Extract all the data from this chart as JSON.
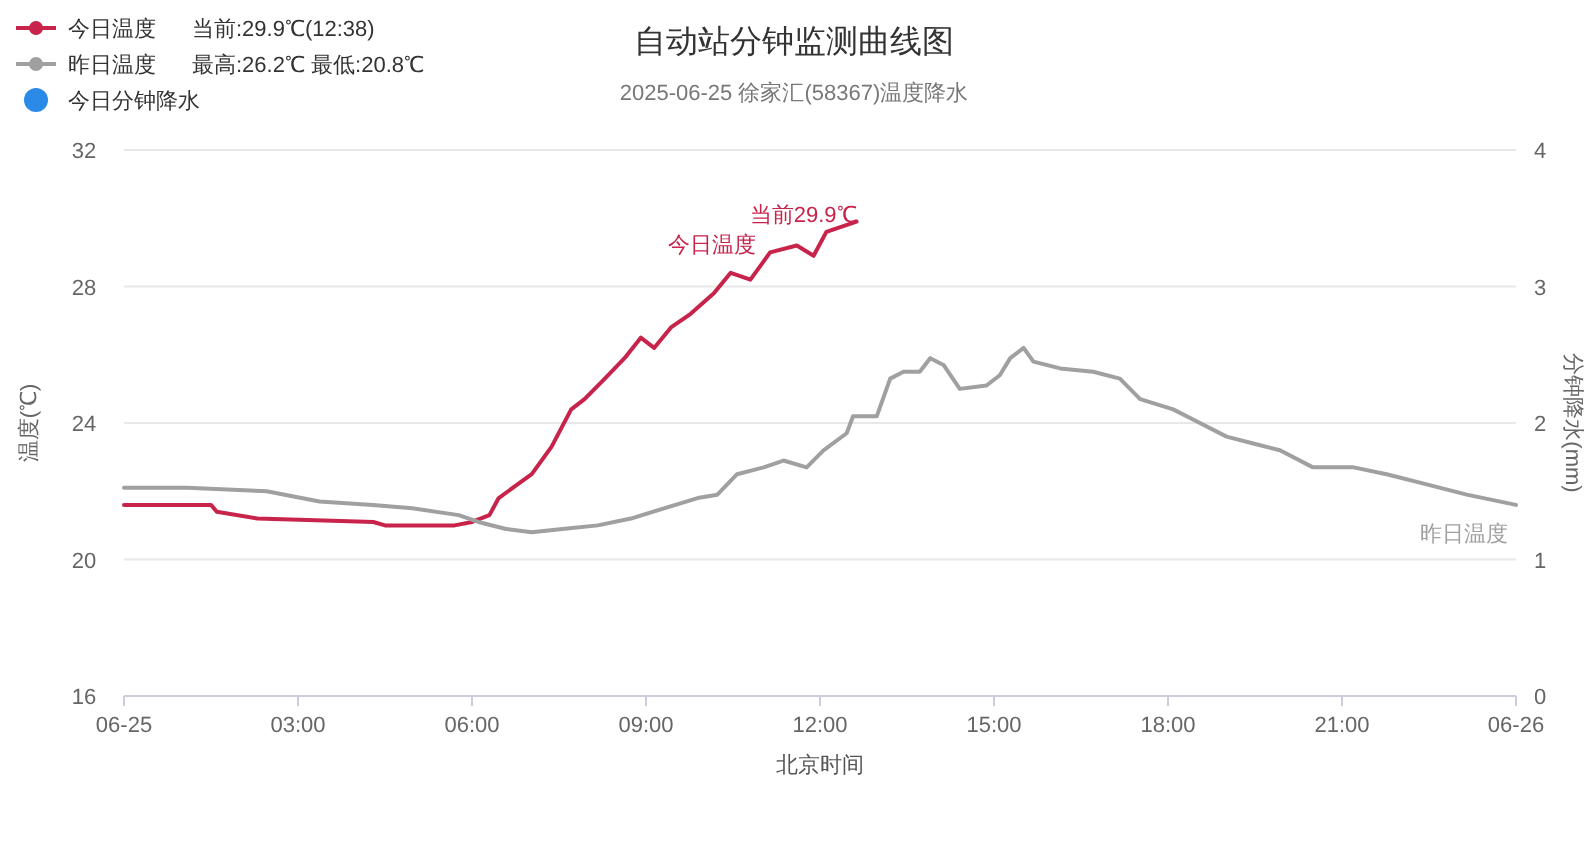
{
  "chart_data": {
    "type": "line",
    "title": "自动站分钟监测曲线图",
    "subtitle": "2025-06-25 徐家汇(58367)温度降水",
    "xlabel": "北京时间",
    "ylabel": "温度(℃)",
    "y2label": "分钟降水(mm)",
    "xlim": [
      0,
      24
    ],
    "xticks": [
      {
        "value": 0,
        "label": "06-25"
      },
      {
        "value": 3,
        "label": "03:00"
      },
      {
        "value": 6,
        "label": "06:00"
      },
      {
        "value": 9,
        "label": "09:00"
      },
      {
        "value": 12,
        "label": "12:00"
      },
      {
        "value": 15,
        "label": "15:00"
      },
      {
        "value": 18,
        "label": "18:00"
      },
      {
        "value": 21,
        "label": "21:00"
      },
      {
        "value": 24,
        "label": "06-26"
      }
    ],
    "ylim": [
      16,
      32
    ],
    "yticks": [
      16,
      20,
      24,
      28,
      32
    ],
    "y2lim": [
      0,
      4
    ],
    "y2ticks": [
      0,
      1,
      2,
      3,
      4
    ],
    "grid": "y",
    "legend": "top left",
    "marker": "none",
    "line_style": "solid",
    "series": [
      {
        "name": "今日温度",
        "color": "#c8234a",
        "x": [
          0,
          1.5,
          1.6,
          2.3,
          4.3,
          4.5,
          5.7,
          6.0,
          6.3,
          6.46,
          7.03,
          7.37,
          7.71,
          7.94,
          8.29,
          8.63,
          8.91,
          9.14,
          9.43,
          9.77,
          10.17,
          10.46,
          10.8,
          11.14,
          11.6,
          11.89,
          12.11,
          12.63
        ],
        "values": [
          21.6,
          21.6,
          21.4,
          21.2,
          21.1,
          21.0,
          21.0,
          21.1,
          21.3,
          21.8,
          22.5,
          23.3,
          24.4,
          24.7,
          25.3,
          25.9,
          26.5,
          26.2,
          26.8,
          27.2,
          27.8,
          28.4,
          28.2,
          29.0,
          29.2,
          28.9,
          29.6,
          29.9
        ]
      },
      {
        "name": "昨日温度",
        "color": "#a0a0a0",
        "x": [
          0,
          1.09,
          2.46,
          3.37,
          4.29,
          4.97,
          5.77,
          6.11,
          6.57,
          7.03,
          7.6,
          8.17,
          8.74,
          9.31,
          9.89,
          10.23,
          10.57,
          11.03,
          11.37,
          11.77,
          12.06,
          12.46,
          12.57,
          12.98,
          13.21,
          13.44,
          13.72,
          13.9,
          14.13,
          14.41,
          14.87,
          15.1,
          15.28,
          15.51,
          15.68,
          16.14,
          16.71,
          17.17,
          17.52,
          18.09,
          18.55,
          19.01,
          19.47,
          19.93,
          20.5,
          21.2,
          21.77,
          22.46,
          23.15,
          24.0
        ],
        "values": [
          22.1,
          22.1,
          22.0,
          21.7,
          21.6,
          21.5,
          21.3,
          21.1,
          20.9,
          20.8,
          20.9,
          21.0,
          21.2,
          21.5,
          21.8,
          21.9,
          22.5,
          22.7,
          22.9,
          22.7,
          23.2,
          23.7,
          24.2,
          24.2,
          25.3,
          25.5,
          25.5,
          25.9,
          25.7,
          25.0,
          25.1,
          25.4,
          25.9,
          26.2,
          25.8,
          25.6,
          25.5,
          25.3,
          24.7,
          24.4,
          24.0,
          23.6,
          23.4,
          23.2,
          22.7,
          22.7,
          22.5,
          22.2,
          21.9,
          21.6
        ]
      },
      {
        "name": "今日分钟降水",
        "color": "#2b8ae8",
        "type": "bar"
      }
    ],
    "annotations": [
      "当前:29.9℃(12:38)",
      "最高:26.2℃ 最低:20.8℃",
      {
        "text": "当前29.9℃",
        "x": 12.63,
        "y": 29.9
      },
      {
        "text": "今日温度",
        "x": 10.9,
        "y": 29.0
      },
      "昨日温度"
    ]
  }
}
